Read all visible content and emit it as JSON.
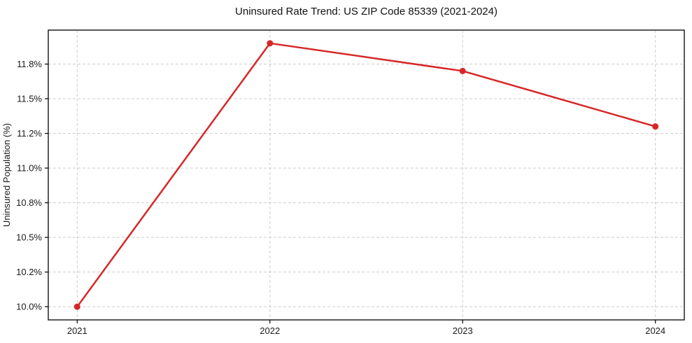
{
  "chart_data": {
    "type": "line",
    "title": "Uninsured Rate Trend: US ZIP Code 85339 (2021-2024)",
    "xlabel": "",
    "ylabel": "Uninsured Population (%)",
    "x": [
      2021,
      2022,
      2023,
      2024
    ],
    "x_tick_labels": [
      "2021",
      "2022",
      "2023",
      "2024"
    ],
    "series": [
      {
        "name": "Uninsured Population (%)",
        "values": [
          10.0,
          11.9,
          11.7,
          11.3
        ],
        "color": "#d62728",
        "marker": "circle",
        "line_width": 2.5,
        "marker_radius": 4.5
      }
    ],
    "y_ticks": [
      10.0,
      10.25,
      10.5,
      10.75,
      11.0,
      11.25,
      11.5,
      11.75
    ],
    "y_tick_labels": [
      "10.0%",
      "10.2%",
      "10.5%",
      "10.8%",
      "11.0%",
      "11.2%",
      "11.5%",
      "11.8%"
    ],
    "xlim": [
      2020.85,
      2024.15
    ],
    "ylim": [
      9.905,
      11.995
    ],
    "grid": "dashed",
    "grid_on": true,
    "grid_color": "#cccccc",
    "axis_color": "#000000",
    "background": "#ffffff",
    "legend_position": "none"
  }
}
